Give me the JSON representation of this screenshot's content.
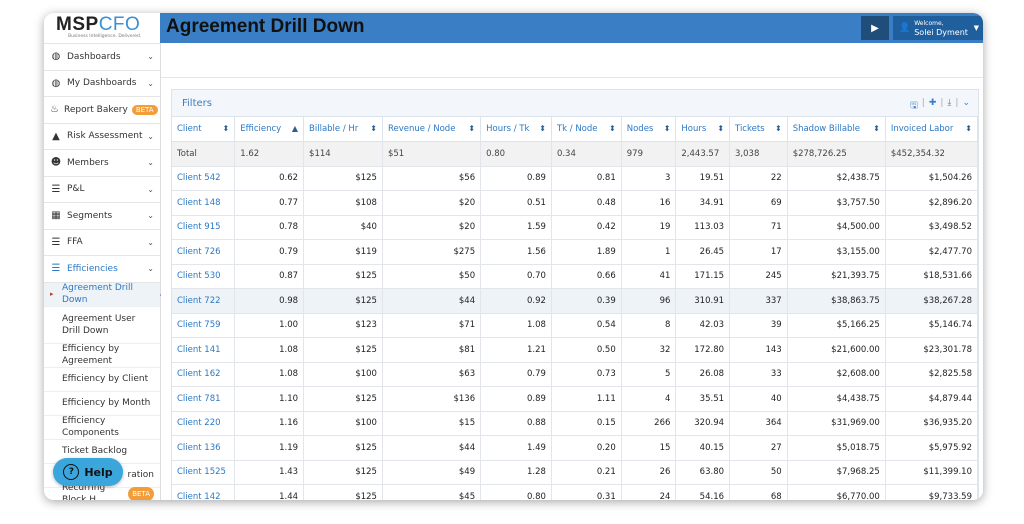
{
  "app": {
    "logo_main_1": "MSP",
    "logo_main_2": "CFO",
    "logo_sub": "Business Intelligence. Delivered."
  },
  "header": {
    "title": "Agreement Drill Down",
    "welcome_line1": "Welcome,",
    "welcome_line2": "Solei Dyment"
  },
  "sidebar": {
    "items": [
      {
        "label": "Dashboards",
        "icon": "dashboard-icon"
      },
      {
        "label": "My Dashboards",
        "icon": "dashboard-icon"
      },
      {
        "label": "Report Bakery",
        "icon": "bakery-icon",
        "badge": "BETA"
      },
      {
        "label": "Risk Assessment",
        "icon": "warning-icon"
      },
      {
        "label": "Members",
        "icon": "users-icon"
      },
      {
        "label": "P&L",
        "icon": "list-icon"
      },
      {
        "label": "Segments",
        "icon": "grid-icon"
      },
      {
        "label": "FFA",
        "icon": "list-icon"
      },
      {
        "label": "Efficiencies",
        "icon": "list-icon"
      }
    ],
    "subitems": [
      {
        "label": "Agreement Drill Down"
      },
      {
        "label": "Agreement User Drill Down"
      },
      {
        "label": "Efficiency by Agreement"
      },
      {
        "label": "Efficiency by Client"
      },
      {
        "label": "Efficiency by Month"
      },
      {
        "label": "Efficiency Components"
      },
      {
        "label": "Ticket Backlog"
      },
      {
        "label": "ration"
      },
      {
        "label": "Recurring Block H",
        "badge": "BETA"
      }
    ],
    "help_label": "Help"
  },
  "filters": {
    "title": "Filters"
  },
  "table": {
    "columns": [
      "Client",
      "Efficiency",
      "Billable / Hr",
      "Revenue / Node",
      "Hours / Tk",
      "Tk / Node",
      "Nodes",
      "Hours",
      "Tickets",
      "Shadow Billable",
      "Invoiced Labor"
    ],
    "total": [
      "Total",
      "1.62",
      "$114",
      "$51",
      "0.80",
      "0.34",
      "979",
      "2,443.57",
      "3,038",
      "$278,726.25",
      "$452,354.32"
    ],
    "rows": [
      [
        "Client 542",
        "0.62",
        "$125",
        "$56",
        "0.89",
        "0.81",
        "3",
        "19.51",
        "22",
        "$2,438.75",
        "$1,504.26"
      ],
      [
        "Client 148",
        "0.77",
        "$108",
        "$20",
        "0.51",
        "0.48",
        "16",
        "34.91",
        "69",
        "$3,757.50",
        "$2,896.20"
      ],
      [
        "Client 915",
        "0.78",
        "$40",
        "$20",
        "1.59",
        "0.42",
        "19",
        "113.03",
        "71",
        "$4,500.00",
        "$3,498.52"
      ],
      [
        "Client 726",
        "0.79",
        "$119",
        "$275",
        "1.56",
        "1.89",
        "1",
        "26.45",
        "17",
        "$3,155.00",
        "$2,477.70"
      ],
      [
        "Client 530",
        "0.87",
        "$125",
        "$50",
        "0.70",
        "0.66",
        "41",
        "171.15",
        "245",
        "$21,393.75",
        "$18,531.66"
      ],
      [
        "Client 722",
        "0.98",
        "$125",
        "$44",
        "0.92",
        "0.39",
        "96",
        "310.91",
        "337",
        "$38,863.75",
        "$38,267.28"
      ],
      [
        "Client 759",
        "1.00",
        "$123",
        "$71",
        "1.08",
        "0.54",
        "8",
        "42.03",
        "39",
        "$5,166.25",
        "$5,146.74"
      ],
      [
        "Client 141",
        "1.08",
        "$125",
        "$81",
        "1.21",
        "0.50",
        "32",
        "172.80",
        "143",
        "$21,600.00",
        "$23,301.78"
      ],
      [
        "Client 162",
        "1.08",
        "$100",
        "$63",
        "0.79",
        "0.73",
        "5",
        "26.08",
        "33",
        "$2,608.00",
        "$2,825.58"
      ],
      [
        "Client 781",
        "1.10",
        "$125",
        "$136",
        "0.89",
        "1.11",
        "4",
        "35.51",
        "40",
        "$4,438.75",
        "$4,879.44"
      ],
      [
        "Client 220",
        "1.16",
        "$100",
        "$15",
        "0.88",
        "0.15",
        "266",
        "320.94",
        "364",
        "$31,969.00",
        "$36,935.20"
      ],
      [
        "Client 136",
        "1.19",
        "$125",
        "$44",
        "1.49",
        "0.20",
        "15",
        "40.15",
        "27",
        "$5,018.75",
        "$5,975.92"
      ],
      [
        "Client 1525",
        "1.43",
        "$125",
        "$49",
        "1.28",
        "0.21",
        "26",
        "63.80",
        "50",
        "$7,968.25",
        "$11,399.10"
      ],
      [
        "Client 142",
        "1.44",
        "$125",
        "$45",
        "0.80",
        "0.31",
        "24",
        "54.16",
        "68",
        "$6,770.00",
        "$9,733.59"
      ]
    ]
  }
}
